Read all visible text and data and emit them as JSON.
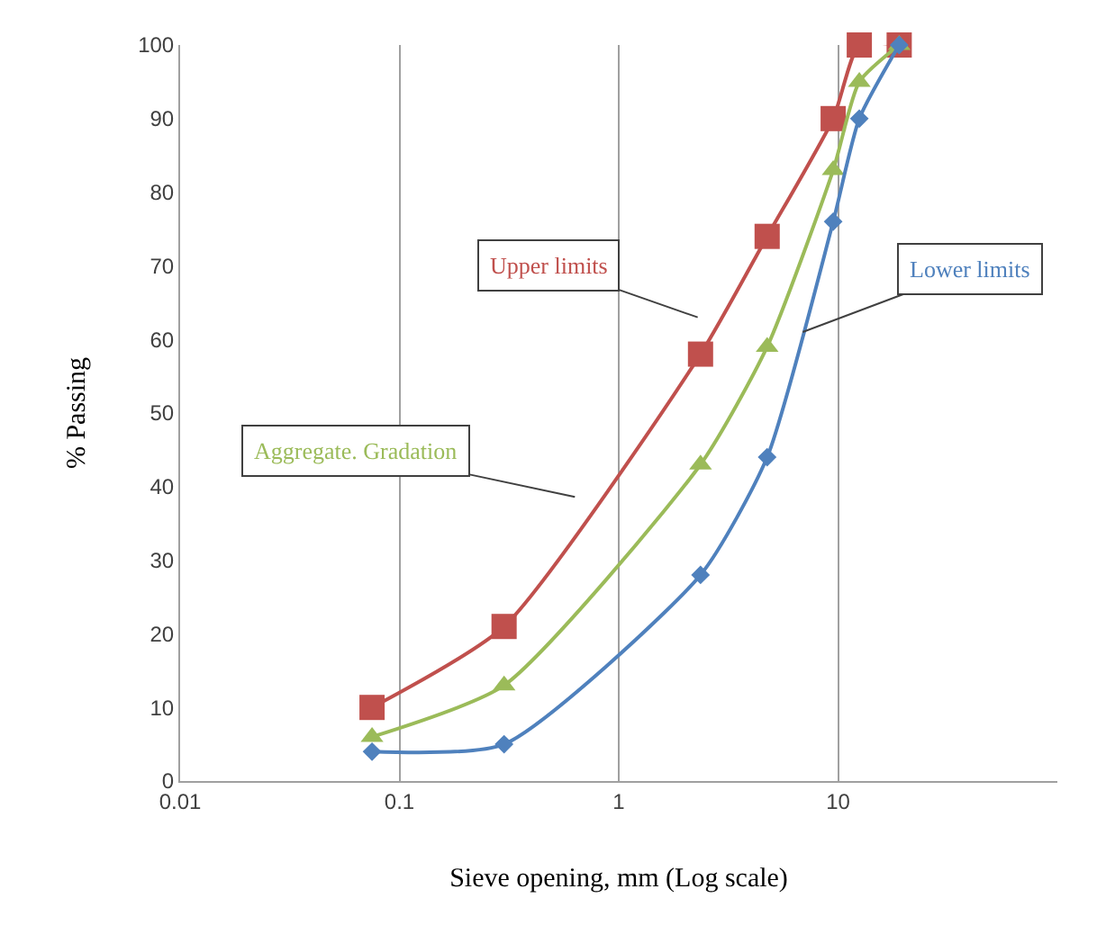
{
  "chart_data": {
    "type": "line",
    "xlabel": "Sieve opening, mm (Log scale)",
    "ylabel": "% Passing",
    "x": [
      0.075,
      0.3,
      2.36,
      4.75,
      9.5,
      12.5,
      19
    ],
    "series": [
      {
        "color": "#c0504d",
        "marker": "square",
        "values": [
          10,
          21,
          58,
          74,
          90,
          100,
          100
        ]
      },
      {
        "color": "#9bbb59",
        "marker": "triangle",
        "values": [
          6,
          13,
          43,
          59,
          83,
          95,
          100
        ]
      },
      {
        "color": "#4f81bd",
        "marker": "diamond",
        "values": [
          4,
          5,
          28,
          44,
          76,
          90,
          100
        ]
      }
    ],
    "annotations": [
      "Upper limits",
      "Aggregate. Gradation",
      {
        "text": "Lower limits",
        "x": 6.9,
        "y": 61
      }
    ],
    "log": "x",
    "xlim": [
      0.01,
      100
    ],
    "xticks": [
      0.01,
      0.1,
      1,
      10
    ],
    "ylim": [
      0,
      100
    ],
    "yticks": [
      0,
      10,
      20,
      30,
      40,
      50,
      60,
      70,
      80,
      90,
      100
    ],
    "grid": "x"
  }
}
